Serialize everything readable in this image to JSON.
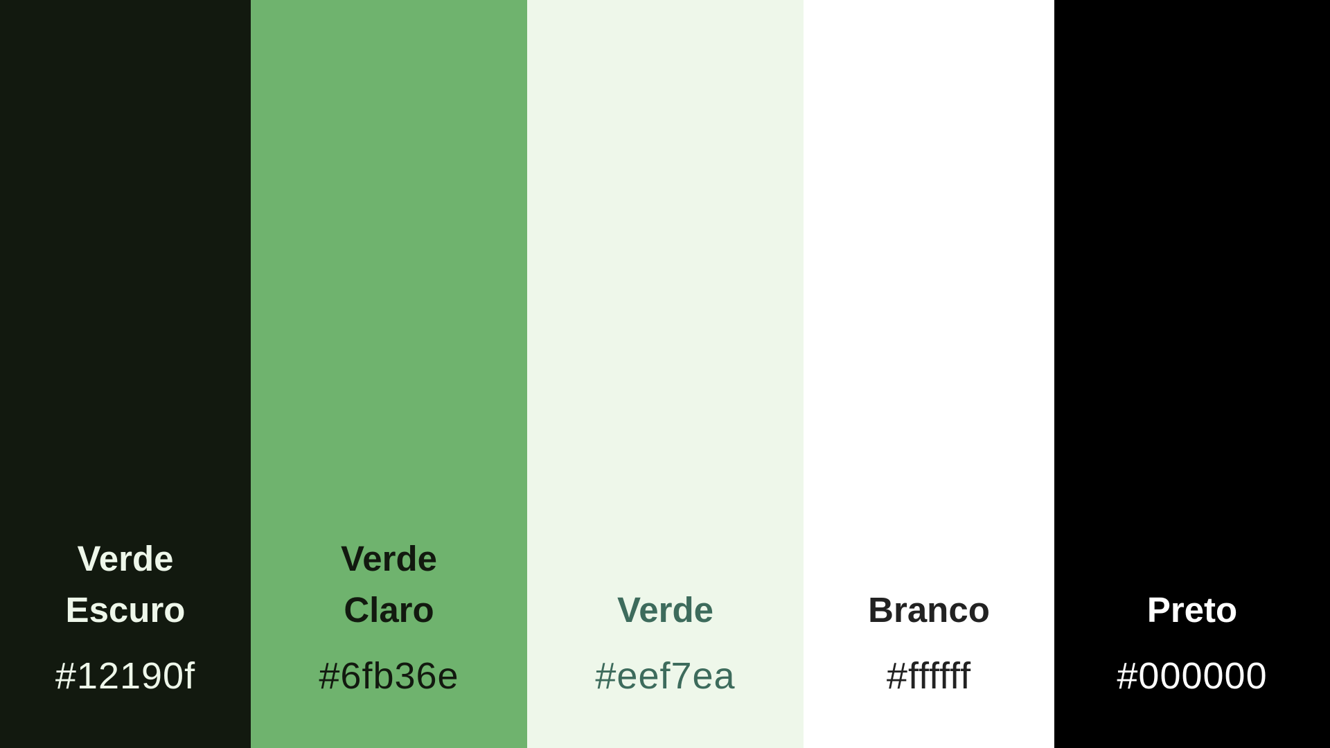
{
  "palette": {
    "swatches": [
      {
        "name": "Verde\nEscuro",
        "hex": "#12190f",
        "background": "#12190f",
        "text_color": "#eef7ea"
      },
      {
        "name": "Verde\nClaro",
        "hex": "#6fb36e",
        "background": "#6fb36e",
        "text_color": "#12190f"
      },
      {
        "name": "Verde",
        "hex": "#eef7ea",
        "background": "#eef7ea",
        "text_color": "#3d6b5c"
      },
      {
        "name": "Branco",
        "hex": "#ffffff",
        "background": "#ffffff",
        "text_color": "#222222"
      },
      {
        "name": "Preto",
        "hex": "#000000",
        "background": "#000000",
        "text_color": "#ffffff"
      }
    ]
  }
}
